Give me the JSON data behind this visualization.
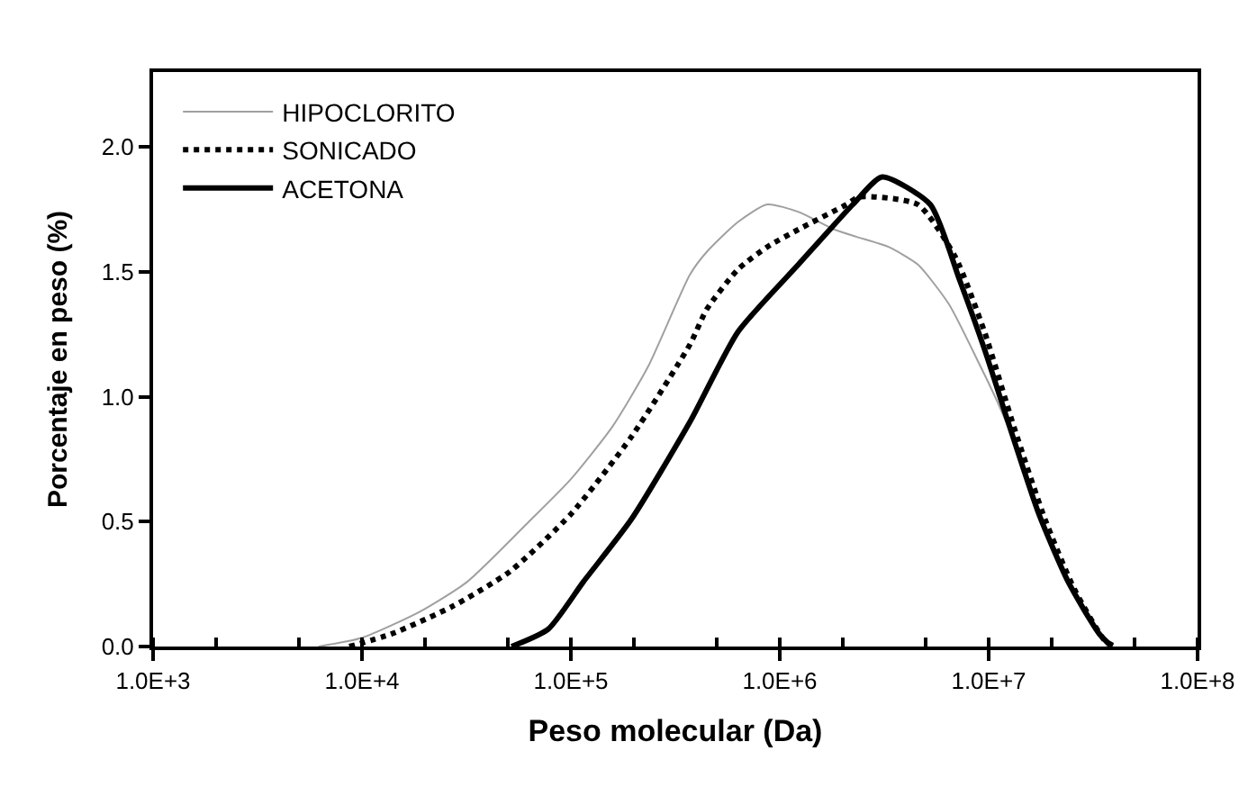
{
  "chart_data": {
    "type": "line",
    "xlabel": "Peso molecular (Da)",
    "ylabel": "Porcentaje en peso (%)",
    "log": "x",
    "legend": "top left",
    "marker": "none",
    "xlim": [
      1000,
      100000000
    ],
    "xticks": [
      {
        "value": 1000,
        "label": "1.0E+3"
      },
      {
        "value": 10000,
        "label": "1.0E+4"
      },
      {
        "value": 100000,
        "label": "1.0E+5"
      },
      {
        "value": 1000000,
        "label": "1.0E+6"
      },
      {
        "value": 10000000,
        "label": "1.0E+7"
      },
      {
        "value": 100000000,
        "label": "1.0E+8"
      }
    ],
    "ylim": [
      0,
      2.3
    ],
    "yticks": [
      {
        "value": 0,
        "label": "0.0"
      },
      {
        "value": 0.5,
        "label": "0.5"
      },
      {
        "value": 1,
        "label": "1.0"
      },
      {
        "value": 1.5,
        "label": "1.5"
      },
      {
        "value": 2,
        "label": "2.0"
      }
    ],
    "series": [
      {
        "name": "HIPOCLORITO",
        "color": "#a0a0a0",
        "line_style": "solid",
        "x": [
          6200,
          10000,
          19000,
          32000,
          63000,
          100000,
          158000,
          234000,
          372000,
          447000,
          631000,
          871000,
          1230000,
          1820000,
          2340000,
          3310000,
          4570000,
          6460000,
          8910000,
          11000000,
          14800000,
          20400000,
          28200000,
          37200000
        ],
        "values": [
          0,
          0.035,
          0.14,
          0.26,
          0.5,
          0.67,
          0.88,
          1.12,
          1.49,
          1.58,
          1.7,
          1.77,
          1.74,
          1.67,
          1.64,
          1.6,
          1.53,
          1.37,
          1.14,
          0.98,
          0.72,
          0.38,
          0.14,
          0
        ]
      },
      {
        "name": "SONICADO",
        "color": "#000000",
        "line_style": "dotted",
        "x": [
          8700,
          13800,
          27000,
          51000,
          100000,
          195000,
          372000,
          447000,
          631000,
          871000,
          1230000,
          2090000,
          2400000,
          4570000,
          6920000,
          9550000,
          13200000,
          18600000,
          25700000,
          36300000,
          40700000
        ],
        "values": [
          0,
          0.05,
          0.16,
          0.3,
          0.53,
          0.84,
          1.21,
          1.35,
          1.51,
          1.6,
          1.67,
          1.77,
          1.8,
          1.77,
          1.56,
          1.26,
          0.88,
          0.51,
          0.23,
          0.02,
          0
        ]
      },
      {
        "name": "ACETONA",
        "color": "#000000",
        "line_style": "solid",
        "x": [
          52000,
          78000,
          115000,
          195000,
          372000,
          631000,
          1230000,
          2240000,
          3090000,
          5250000,
          7240000,
          9550000,
          12600000,
          17400000,
          24000000,
          33900000,
          38900000
        ],
        "values": [
          0,
          0.07,
          0.26,
          0.51,
          0.9,
          1.26,
          1.53,
          1.77,
          1.88,
          1.77,
          1.47,
          1.19,
          0.88,
          0.53,
          0.26,
          0.05,
          0
        ]
      }
    ]
  }
}
